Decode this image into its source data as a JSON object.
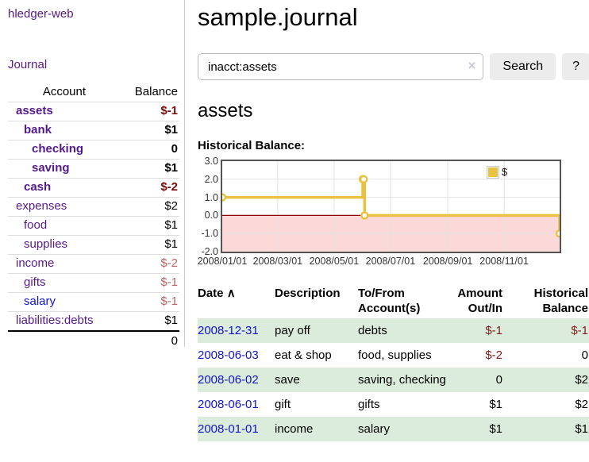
{
  "app": {
    "title": "hledger-web"
  },
  "sidebar": {
    "journal_label": "Journal",
    "accounts_table": {
      "headers": {
        "account": "Account",
        "balance": "Balance"
      },
      "rows": [
        {
          "name": "assets",
          "indent": 1,
          "bold": true,
          "link_color": "purple",
          "balance": "$-1",
          "balance_style": "neg-strong"
        },
        {
          "name": "bank",
          "indent": 2,
          "bold": true,
          "link_color": "purple",
          "balance": "$1",
          "balance_style": "pos"
        },
        {
          "name": "checking",
          "indent": 3,
          "bold": true,
          "link_color": "purple",
          "balance": "0",
          "balance_style": "pos"
        },
        {
          "name": "saving",
          "indent": 3,
          "bold": true,
          "link_color": "purple",
          "balance": "$1",
          "balance_style": "pos"
        },
        {
          "name": "cash",
          "indent": 2,
          "bold": true,
          "link_color": "purple",
          "balance": "$-2",
          "balance_style": "neg-strong"
        },
        {
          "name": "expenses",
          "indent": 1,
          "bold": false,
          "link_color": "purple",
          "balance": "$2",
          "balance_style": "pos"
        },
        {
          "name": "food",
          "indent": 2,
          "bold": false,
          "link_color": "purple",
          "balance": "$1",
          "balance_style": "pos"
        },
        {
          "name": "supplies",
          "indent": 2,
          "bold": false,
          "link_color": "purple",
          "balance": "$1",
          "balance_style": "pos"
        },
        {
          "name": "income",
          "indent": 1,
          "bold": false,
          "link_color": "purple",
          "balance": "$-2",
          "balance_style": "neg-soft"
        },
        {
          "name": "gifts",
          "indent": 2,
          "bold": false,
          "link_color": "purple",
          "balance": "$-1",
          "balance_style": "neg-soft"
        },
        {
          "name": "salary",
          "indent": 2,
          "bold": false,
          "link_color": "blue",
          "balance": "$-1",
          "balance_style": "neg-soft"
        },
        {
          "name": "liabilities:debts",
          "indent": 1,
          "bold": false,
          "link_color": "purple",
          "balance": "$1",
          "balance_style": "pos"
        }
      ],
      "total": "0"
    }
  },
  "main": {
    "title": "sample.journal",
    "search": {
      "value": "inacct:assets",
      "clear_icon": "×",
      "button": "Search",
      "help_button": "?"
    },
    "account_heading": "assets"
  },
  "chart_data": {
    "type": "line",
    "style": "steps",
    "title": "Historical Balance:",
    "legend": {
      "label": "$",
      "position": "top-right"
    },
    "series": [
      {
        "name": "$",
        "color": "#e8c240",
        "points": [
          [
            "2008-01-01",
            1
          ],
          [
            "2008-06-01",
            2
          ],
          [
            "2008-06-02",
            2
          ],
          [
            "2008-06-03",
            0
          ],
          [
            "2008-12-31",
            -1
          ]
        ]
      }
    ],
    "x_start": "2008-01-01",
    "x_ticks": [
      "2008/01/01",
      "2008/03/01",
      "2008/05/01",
      "2008/07/01",
      "2008/09/01",
      "2008/11/01"
    ],
    "y_ticks": [
      3.0,
      2.0,
      1.0,
      0.0,
      -1.0,
      -2.0
    ],
    "ylim": [
      -2,
      3
    ],
    "grid": true,
    "colors": {
      "gridline": "#e2e2e2",
      "zero_line": "#8b0000",
      "negative_region": "#fbd9d9",
      "frame": "#545454",
      "marker_fill": "#ffffff"
    }
  },
  "transactions": {
    "headers": {
      "date": "Date",
      "sort_asc_icon": "∧",
      "description": "Description",
      "accounts": "To/From Account(s)",
      "amount": "Amount Out/In",
      "balance": "Historical Balance"
    },
    "rows": [
      {
        "date": "2008-12-31",
        "description": "pay off",
        "accounts": "debts",
        "amount": "$-1",
        "amount_neg": true,
        "balance": "$-1",
        "balance_neg": true,
        "shaded": true
      },
      {
        "date": "2008-06-03",
        "description": "eat & shop",
        "accounts": "food, supplies",
        "amount": "$-2",
        "amount_neg": true,
        "balance": "0",
        "balance_neg": false,
        "shaded": false
      },
      {
        "date": "2008-06-02",
        "description": "save",
        "accounts": "saving, checking",
        "amount": "0",
        "amount_neg": false,
        "balance": "$2",
        "balance_neg": false,
        "shaded": true
      },
      {
        "date": "2008-06-01",
        "description": "gift",
        "accounts": "gifts",
        "amount": "$1",
        "amount_neg": false,
        "balance": "$2",
        "balance_neg": false,
        "shaded": false
      },
      {
        "date": "2008-01-01",
        "description": "income",
        "accounts": "salary",
        "amount": "$1",
        "amount_neg": false,
        "balance": "$1",
        "balance_neg": false,
        "shaded": true
      }
    ]
  },
  "colors": {
    "link_purple": "#551a8b",
    "link_blue": "#1414cc",
    "negative_strong": "#7b0b0b",
    "negative_soft": "#bb6767",
    "negative_table": "#82201d",
    "row_stripe_green": "#dcecdc",
    "button_bg": "#ececec",
    "series_gold": "#e8c240"
  }
}
